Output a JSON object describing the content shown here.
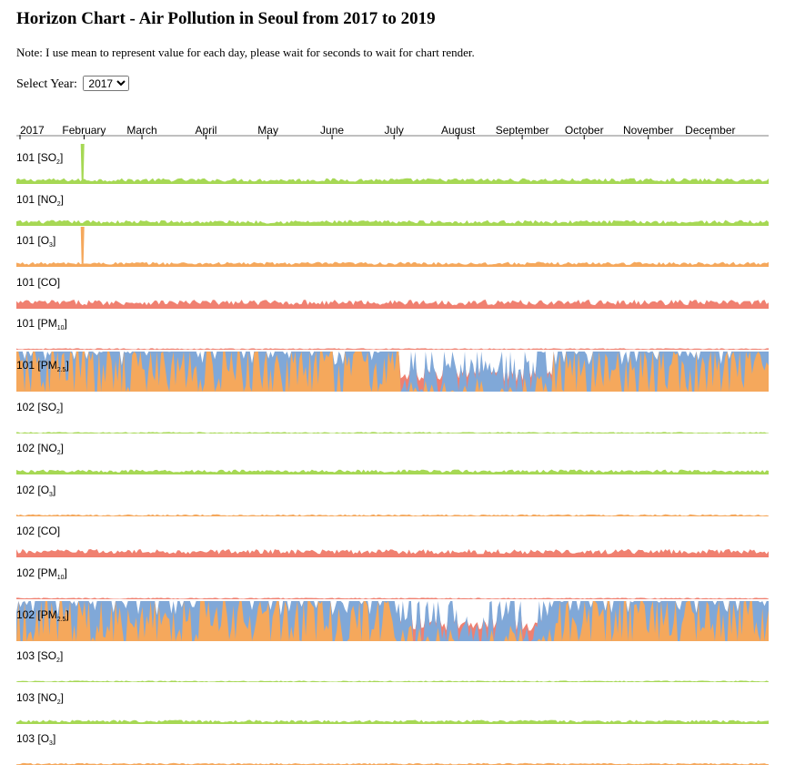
{
  "page": {
    "title": "Horizon Chart - Air Pollution in Seoul from 2017 to 2019",
    "note": "Note: I use mean to represent value for each day, please wait for seconds to wait for chart render.",
    "year_label": "Select Year:",
    "year_selected": "2017"
  },
  "colors": {
    "SO2": "#a6d854",
    "NO2": "#a6d854",
    "O3": "#f5a85c",
    "CO": "#f08070",
    "PM10": "#f08070",
    "PM2.5_band1": "#f08070",
    "PM2.5_band2": "#80a8d8",
    "PM2.5_band3": "#f5a85c",
    "negative_band": "#80a8d8",
    "axis": "#000000"
  },
  "chart_data": {
    "type": "horizon",
    "x_axis": {
      "domain": [
        "2017-01-01",
        "2017-12-31"
      ],
      "tick_labels": [
        "2017",
        "February",
        "March",
        "April",
        "May",
        "June",
        "July",
        "August",
        "September",
        "October",
        "November",
        "December"
      ]
    },
    "series": [
      {
        "station": "101",
        "item": "SO",
        "sub": "2",
        "profile": "spike_low",
        "level": 0.35,
        "spike_day": 32
      },
      {
        "station": "101",
        "item": "NO",
        "sub": "2",
        "profile": "normal",
        "level": 0.35,
        "spike_day": 32
      },
      {
        "station": "101",
        "item": "O",
        "sub": "3",
        "profile": "spike_low",
        "level": 0.3,
        "spike_day": 32
      },
      {
        "station": "101",
        "item": "CO",
        "sub": "",
        "profile": "normal",
        "level": 0.55
      },
      {
        "station": "101",
        "item": "PM",
        "sub": "10",
        "profile": "thin",
        "level": 0.15
      },
      {
        "station": "101",
        "item": "PM",
        "sub": "2.5",
        "profile": "saturated",
        "level": 1.0
      },
      {
        "station": "102",
        "item": "SO",
        "sub": "2",
        "profile": "thin",
        "level": 0.15
      },
      {
        "station": "102",
        "item": "NO",
        "sub": "2",
        "profile": "normal",
        "level": 0.3
      },
      {
        "station": "102",
        "item": "O",
        "sub": "3",
        "profile": "thin",
        "level": 0.2
      },
      {
        "station": "102",
        "item": "CO",
        "sub": "",
        "profile": "normal",
        "level": 0.5
      },
      {
        "station": "102",
        "item": "PM",
        "sub": "10",
        "profile": "thin",
        "level": 0.15
      },
      {
        "station": "102",
        "item": "PM",
        "sub": "2.5",
        "profile": "saturated",
        "level": 1.0
      },
      {
        "station": "103",
        "item": "SO",
        "sub": "2",
        "profile": "thin",
        "level": 0.15
      },
      {
        "station": "103",
        "item": "NO",
        "sub": "2",
        "profile": "normal",
        "level": 0.25
      },
      {
        "station": "103",
        "item": "O",
        "sub": "3",
        "profile": "thin",
        "level": 0.2
      }
    ]
  }
}
